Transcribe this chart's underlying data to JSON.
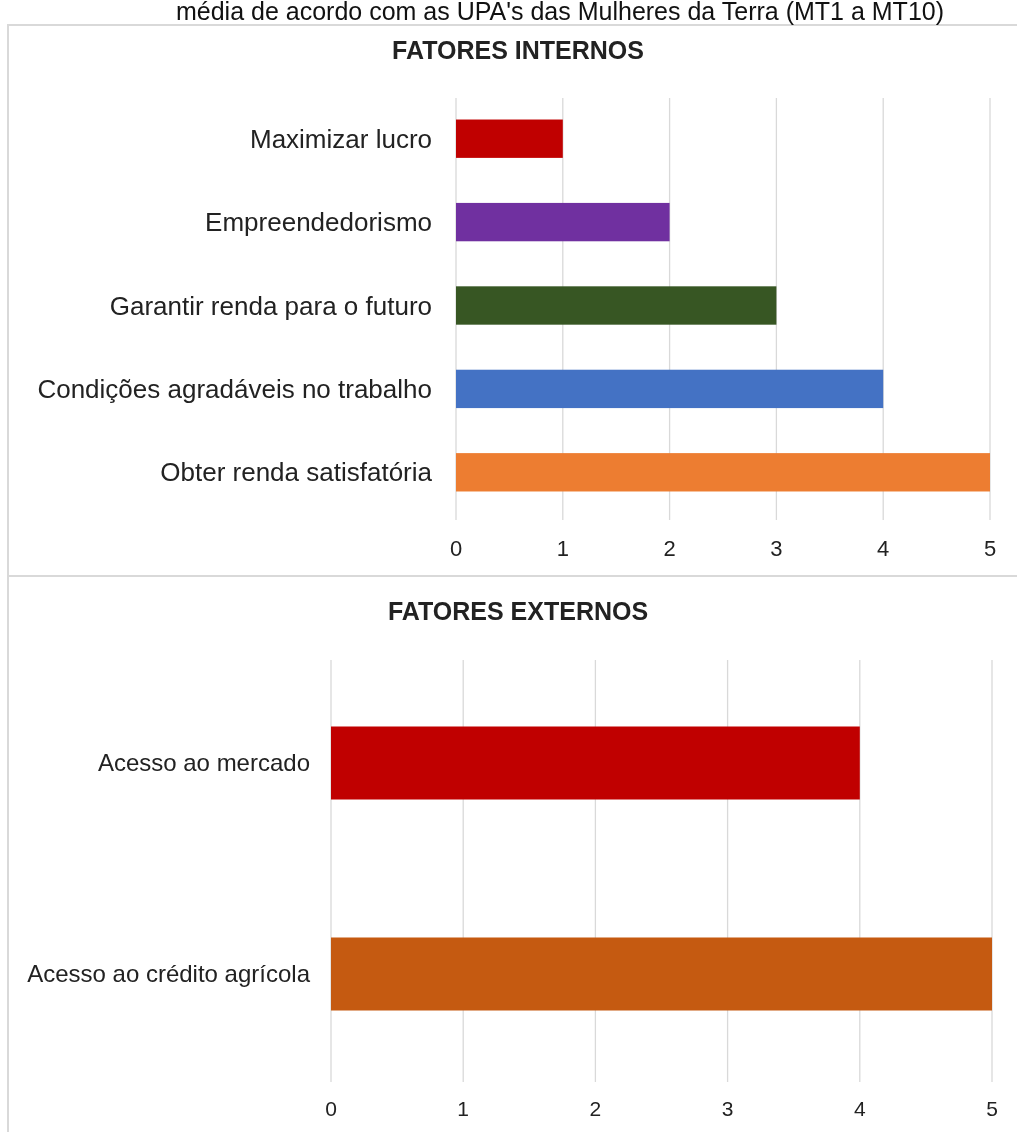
{
  "chart_data": [
    {
      "type": "bar",
      "orientation": "horizontal",
      "title": "FATORES INTERNOS",
      "annotations": [
        "média de acordo com as UPA's das Mulheres da Terra (MT1 a MT10)"
      ],
      "categories": [
        "Maximizar lucro",
        "Empreendedorismo",
        "Garantir renda para o futuro",
        "Condições agradáveis no trabalho",
        "Obter renda satisfatória"
      ],
      "values": [
        1,
        2,
        3,
        4,
        5
      ],
      "colors": [
        "#c00000",
        "#7030a0",
        "#375623",
        "#4472c4",
        "#ed7d31"
      ],
      "xlim": [
        0,
        5
      ],
      "xticks": [
        0,
        1,
        2,
        3,
        4,
        5
      ],
      "grid": "x"
    },
    {
      "type": "bar",
      "orientation": "horizontal",
      "title": "FATORES EXTERNOS",
      "categories": [
        "Acesso ao mercado",
        "Acesso ao crédito agrícola"
      ],
      "values": [
        4,
        5
      ],
      "colors": [
        "#c00000",
        "#c55a11"
      ],
      "xlim": [
        0,
        5
      ],
      "xticks": [
        0,
        1,
        2,
        3,
        4,
        5
      ],
      "grid": "x"
    }
  ]
}
